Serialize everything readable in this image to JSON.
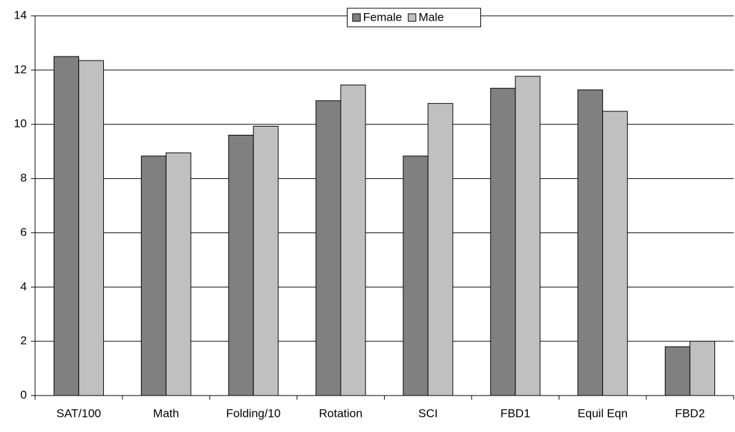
{
  "chart_data": {
    "type": "bar",
    "categories": [
      "SAT/100",
      "Math",
      "Folding/10",
      "Rotation",
      "SCI",
      "FBD1",
      "Equil Eqn",
      "FBD2"
    ],
    "series": [
      {
        "name": "Female",
        "color": "#808080",
        "values": [
          12.5,
          8.83,
          9.6,
          10.87,
          8.83,
          11.33,
          11.27,
          1.8
        ]
      },
      {
        "name": "Male",
        "color": "#c0c0c0",
        "values": [
          12.35,
          8.95,
          9.93,
          11.45,
          10.77,
          11.77,
          10.48,
          2.0
        ]
      }
    ],
    "ylim": [
      0,
      14
    ],
    "yticks": [
      0,
      2,
      4,
      6,
      8,
      10,
      12,
      14
    ],
    "grid": true,
    "legend": "top"
  }
}
